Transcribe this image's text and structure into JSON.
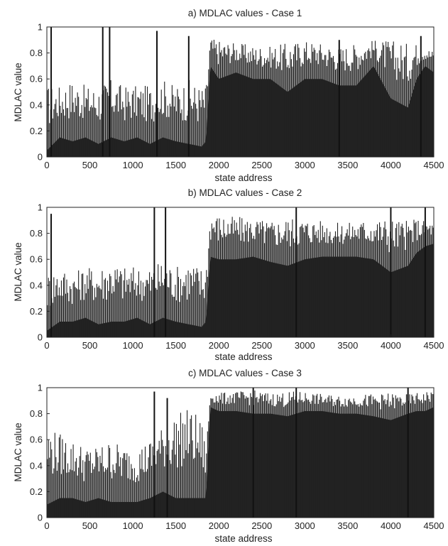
{
  "figure": {
    "background": "#ffffff",
    "bar_color": "#222222",
    "peak_color": "#111111"
  },
  "chart_data": [
    {
      "type": "bar",
      "title": "a) MDLAC values - Case 1",
      "xlabel": "state address",
      "ylabel": "MDLAC value",
      "xlim": [
        0,
        4500
      ],
      "ylim": [
        0,
        1
      ],
      "xticks": [
        "0",
        "500",
        "1000",
        "1500",
        "2000",
        "2500",
        "3000",
        "3500",
        "4000",
        "4500"
      ],
      "yticks": [
        "0",
        "0.2",
        "0.4",
        "0.6",
        "0.8",
        "1"
      ],
      "grid": false,
      "x": [
        0,
        150,
        300,
        450,
        600,
        750,
        900,
        1050,
        1200,
        1350,
        1500,
        1650,
        1800,
        1850,
        1900,
        2000,
        2200,
        2400,
        2600,
        2800,
        3000,
        3200,
        3400,
        3600,
        3800,
        4000,
        4200,
        4300,
        4400,
        4500
      ],
      "values": [
        0.05,
        0.15,
        0.12,
        0.15,
        0.1,
        0.15,
        0.12,
        0.15,
        0.1,
        0.15,
        0.12,
        0.1,
        0.08,
        0.12,
        0.7,
        0.6,
        0.65,
        0.6,
        0.6,
        0.5,
        0.6,
        0.6,
        0.55,
        0.55,
        0.7,
        0.45,
        0.38,
        0.6,
        0.7,
        0.65
      ],
      "envelope": [
        0.55,
        0.55,
        0.6,
        0.55,
        0.55,
        0.6,
        0.55,
        0.55,
        0.55,
        0.6,
        0.55,
        0.6,
        0.55,
        0.55,
        0.92,
        0.9,
        0.88,
        0.86,
        0.85,
        0.88,
        0.9,
        0.88,
        0.85,
        0.88,
        0.9,
        0.9,
        0.88,
        0.88,
        0.85,
        0.82
      ],
      "peaks": [
        {
          "x": 50,
          "y": 1.0
        },
        {
          "x": 650,
          "y": 1.0
        },
        {
          "x": 730,
          "y": 1.0
        },
        {
          "x": 1280,
          "y": 0.97
        },
        {
          "x": 1650,
          "y": 0.93
        },
        {
          "x": 3400,
          "y": 0.9
        },
        {
          "x": 4350,
          "y": 0.93
        }
      ]
    },
    {
      "type": "bar",
      "title": "b) MDLAC values - Case 2",
      "xlabel": "state address",
      "ylabel": "MDLAC value",
      "xlim": [
        0,
        4500
      ],
      "ylim": [
        0,
        1
      ],
      "xticks": [
        "0",
        "500",
        "1000",
        "1500",
        "2000",
        "2500",
        "3000",
        "3500",
        "4000",
        "4500"
      ],
      "yticks": [
        "0",
        "0.2",
        "0.4",
        "0.6",
        "0.8",
        "1"
      ],
      "grid": false,
      "x": [
        0,
        150,
        300,
        450,
        600,
        750,
        900,
        1050,
        1200,
        1350,
        1500,
        1650,
        1800,
        1850,
        1900,
        2000,
        2200,
        2400,
        2600,
        2800,
        3000,
        3200,
        3400,
        3600,
        3800,
        4000,
        4200,
        4300,
        4400,
        4500
      ],
      "values": [
        0.05,
        0.12,
        0.12,
        0.15,
        0.1,
        0.12,
        0.12,
        0.15,
        0.1,
        0.15,
        0.12,
        0.1,
        0.08,
        0.12,
        0.62,
        0.6,
        0.6,
        0.62,
        0.58,
        0.55,
        0.6,
        0.62,
        0.62,
        0.62,
        0.6,
        0.5,
        0.55,
        0.65,
        0.7,
        0.72
      ],
      "envelope": [
        0.5,
        0.55,
        0.5,
        0.55,
        0.55,
        0.6,
        0.55,
        0.55,
        0.55,
        0.6,
        0.55,
        0.6,
        0.55,
        0.55,
        0.97,
        0.95,
        0.93,
        0.92,
        0.9,
        0.93,
        0.92,
        0.9,
        0.88,
        0.9,
        0.92,
        0.92,
        0.9,
        0.92,
        0.9,
        0.88
      ],
      "peaks": [
        {
          "x": 50,
          "y": 0.95
        },
        {
          "x": 1250,
          "y": 1.0
        },
        {
          "x": 1380,
          "y": 1.0
        },
        {
          "x": 2900,
          "y": 1.0
        },
        {
          "x": 4000,
          "y": 1.0
        },
        {
          "x": 4400,
          "y": 1.0
        }
      ]
    },
    {
      "type": "bar",
      "title": "c) MDLAC values - Case 3",
      "xlabel": "state address",
      "ylabel": "MDLAC value",
      "xlim": [
        0,
        4500
      ],
      "ylim": [
        0,
        1
      ],
      "xticks": [
        "0",
        "500",
        "1000",
        "1500",
        "2000",
        "2500",
        "3000",
        "3500",
        "4000",
        "4500"
      ],
      "yticks": [
        "0",
        "0.2",
        "0.4",
        "0.6",
        "0.8",
        "1"
      ],
      "grid": false,
      "x": [
        0,
        150,
        300,
        450,
        600,
        750,
        900,
        1050,
        1200,
        1350,
        1500,
        1650,
        1800,
        1850,
        1900,
        2000,
        2200,
        2400,
        2600,
        2800,
        3000,
        3200,
        3400,
        3600,
        3800,
        4000,
        4200,
        4300,
        4400,
        4500
      ],
      "values": [
        0.1,
        0.15,
        0.15,
        0.12,
        0.15,
        0.12,
        0.12,
        0.12,
        0.15,
        0.2,
        0.15,
        0.15,
        0.15,
        0.15,
        0.85,
        0.82,
        0.82,
        0.8,
        0.8,
        0.78,
        0.82,
        0.82,
        0.8,
        0.8,
        0.78,
        0.75,
        0.8,
        0.82,
        0.82,
        0.85
      ],
      "envelope": [
        0.7,
        0.65,
        0.6,
        0.55,
        0.55,
        0.6,
        0.55,
        0.55,
        0.6,
        0.7,
        0.8,
        0.85,
        0.75,
        0.55,
        0.97,
        0.96,
        0.97,
        0.98,
        0.96,
        0.97,
        0.97,
        0.95,
        0.94,
        0.95,
        0.95,
        0.96,
        0.95,
        0.96,
        0.97,
        0.98
      ],
      "peaks": [
        {
          "x": 1250,
          "y": 0.97
        },
        {
          "x": 1400,
          "y": 0.92
        },
        {
          "x": 2400,
          "y": 1.0
        },
        {
          "x": 2900,
          "y": 1.0
        },
        {
          "x": 4200,
          "y": 1.0
        }
      ]
    }
  ]
}
